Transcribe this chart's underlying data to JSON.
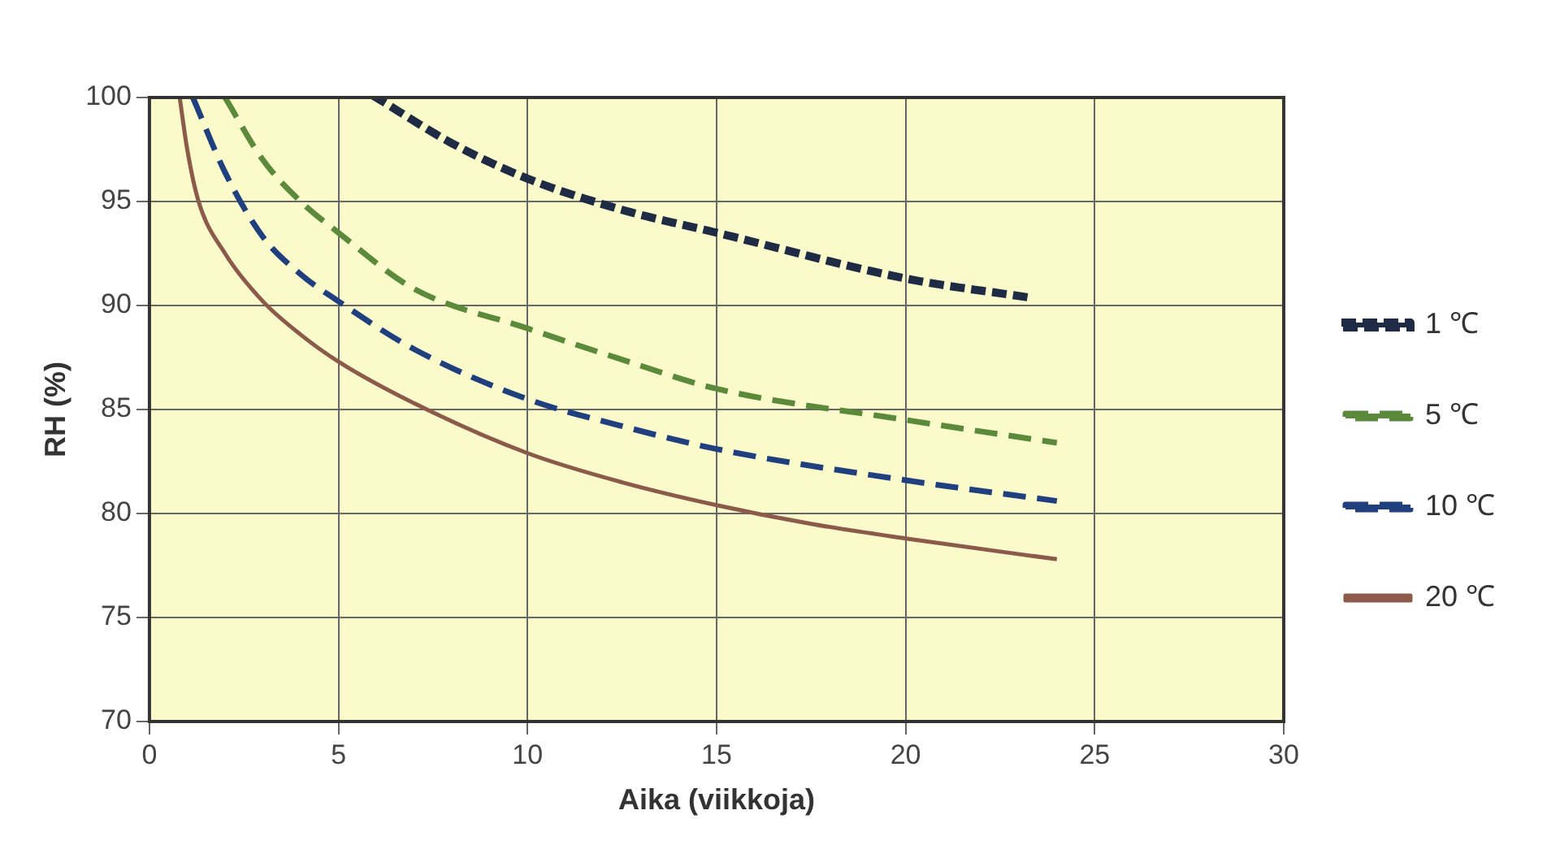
{
  "chart_data": {
    "type": "line",
    "xlabel": "Aika (viikkoja)",
    "ylabel": "RH (%)",
    "xlim": [
      0,
      30
    ],
    "xticks": [
      0,
      5,
      10,
      15,
      20,
      25,
      30
    ],
    "ylim": [
      70,
      100
    ],
    "yticks": [
      70,
      75,
      80,
      85,
      90,
      95,
      100
    ],
    "grid": true,
    "legend": "right",
    "marker": "none",
    "series": [
      {
        "name": "1 ℃",
        "color": "#1f2a44",
        "line_style": "dotted",
        "x": [
          6,
          8,
          10,
          12.5,
          15,
          20,
          23.2
        ],
        "values": [
          100,
          97.8,
          96.1,
          94.6,
          93.5,
          91.3,
          90.4
        ]
      },
      {
        "name": "5 ℃",
        "color": "#5a8a3a",
        "line_style": "dashed",
        "x": [
          2,
          3,
          4,
          5,
          7,
          10,
          12.5,
          15,
          20,
          24
        ],
        "values": [
          100,
          97,
          95,
          93.5,
          90.8,
          88.9,
          87.4,
          86.0,
          84.5,
          83.4
        ]
      },
      {
        "name": "10 ℃",
        "color": "#1f3f7f",
        "line_style": "dashed",
        "x": [
          1.15,
          2,
          3,
          4,
          5,
          7,
          10,
          12.5,
          15,
          20,
          24
        ],
        "values": [
          100,
          96.4,
          93.3,
          91.5,
          90.2,
          87.9,
          85.5,
          84.2,
          83.1,
          81.6,
          80.6
        ]
      },
      {
        "name": "20 ℃",
        "color": "#8b5a4a",
        "line_style": "solid",
        "x": [
          0.8,
          1,
          1.3,
          2,
          3,
          4,
          5,
          7,
          10,
          12.5,
          15,
          17.5,
          20,
          24
        ],
        "values": [
          100,
          97.5,
          95,
          92.5,
          90.2,
          88.6,
          87.3,
          85.3,
          82.9,
          81.5,
          80.4,
          79.5,
          78.8,
          77.8
        ]
      }
    ]
  }
}
